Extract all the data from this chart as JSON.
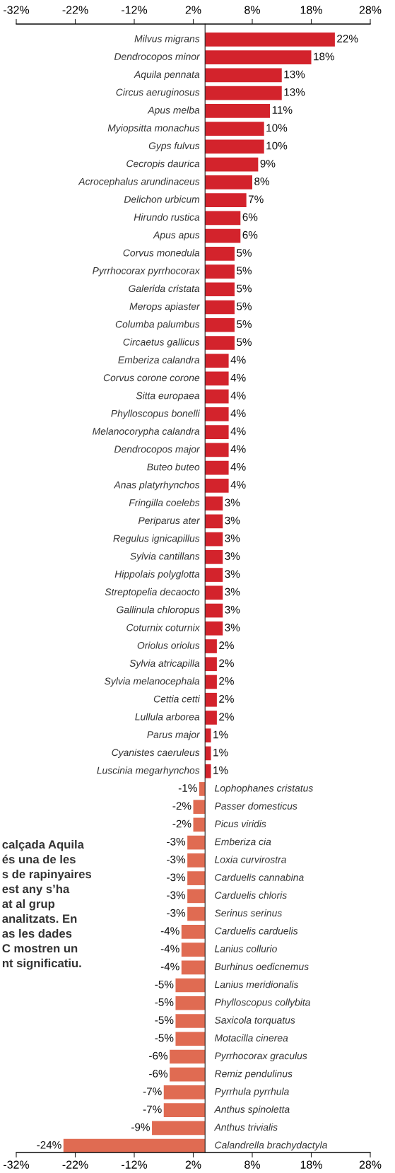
{
  "chart_data": {
    "type": "bar",
    "orientation": "horizontal",
    "categories": [
      "Milvus migrans",
      "Dendrocopos minor",
      "Aquila pennata",
      "Circus aeruginosus",
      "Apus melba",
      "Myiopsitta monachus",
      "Gyps fulvus",
      "Cecropis daurica",
      "Acrocephalus arundinaceus",
      "Delichon urbicum",
      "Hirundo rustica",
      "Apus apus",
      "Corvus monedula",
      "Pyrrhocorax pyrrhocorax",
      "Galerida cristata",
      "Merops apiaster",
      "Columba palumbus",
      "Circaetus gallicus",
      "Emberiza calandra",
      "Corvus corone corone",
      "Sitta europaea",
      "Phylloscopus bonelli",
      "Melanocorypha calandra",
      "Dendrocopos major",
      "Buteo buteo",
      "Anas platyrhynchos",
      "Fringilla coelebs",
      "Periparus ater",
      "Regulus ignicapillus",
      "Sylvia cantillans",
      "Hippolais polyglotta",
      "Streptopelia decaocto",
      "Gallinula chloropus",
      "Coturnix coturnix",
      "Oriolus oriolus",
      "Sylvia atricapilla",
      "Sylvia melanocephala",
      "Cettia cetti",
      "Lullula arborea",
      "Parus major",
      "Cyanistes caeruleus",
      "Luscinia megarhynchos",
      "Lophophanes cristatus",
      "Passer domesticus",
      "Picus viridis",
      "Emberiza cia",
      "Loxia curvirostra",
      "Carduelis cannabina",
      "Carduelis chloris",
      "Serinus serinus",
      "Carduelis carduelis",
      "Lanius collurio",
      "Burhinus oedicnemus",
      "Lanius meridionalis",
      "Phylloscopus collybita",
      "Saxicola torquatus",
      "Motacilla cinerea",
      "Pyrrhocorax graculus",
      "Remiz pendulinus",
      "Pyrrhula pyrrhula",
      "Anthus spinoletta",
      "Anthus trivialis",
      "Calandrella brachydactyla"
    ],
    "values": [
      22,
      18,
      13,
      13,
      11,
      10,
      10,
      9,
      8,
      7,
      6,
      6,
      5,
      5,
      5,
      5,
      5,
      5,
      4,
      4,
      4,
      4,
      4,
      4,
      4,
      4,
      3,
      3,
      3,
      3,
      3,
      3,
      3,
      3,
      2,
      2,
      2,
      2,
      2,
      1,
      1,
      1,
      -1,
      -2,
      -2,
      -3,
      -3,
      -3,
      -3,
      -3,
      -4,
      -4,
      -4,
      -5,
      -5,
      -5,
      -5,
      -6,
      -6,
      -7,
      -7,
      -9,
      -24
    ],
    "value_labels": [
      "22%",
      "18%",
      "13%",
      "13%",
      "11%",
      "10%",
      "10%",
      "9%",
      "8%",
      "7%",
      "6%",
      "6%",
      "5%",
      "5%",
      "5%",
      "5%",
      "5%",
      "5%",
      "4%",
      "4%",
      "4%",
      "4%",
      "4%",
      "4%",
      "4%",
      "4%",
      "3%",
      "3%",
      "3%",
      "3%",
      "3%",
      "3%",
      "3%",
      "3%",
      "2%",
      "2%",
      "2%",
      "2%",
      "2%",
      "1%",
      "1%",
      "1%",
      "-1%",
      "-2%",
      "-2%",
      "-3%",
      "-3%",
      "-3%",
      "-3%",
      "-3%",
      "-4%",
      "-4%",
      "-4%",
      "-5%",
      "-5%",
      "-5%",
      "-5%",
      "-6%",
      "-6%",
      "-7%",
      "-7%",
      "-9%",
      "-24%"
    ],
    "colors": [
      "#d3232c",
      "#d3232c",
      "#d3232c",
      "#d3232c",
      "#d3232c",
      "#d3232c",
      "#d3232c",
      "#d3232c",
      "#d3232c",
      "#d3232c",
      "#d3232c",
      "#d3232c",
      "#d3232c",
      "#d3232c",
      "#d3232c",
      "#d3232c",
      "#d3232c",
      "#d3232c",
      "#d3232c",
      "#d3232c",
      "#d3232c",
      "#d3232c",
      "#d3232c",
      "#d3232c",
      "#d3232c",
      "#d3232c",
      "#d3232c",
      "#d3232c",
      "#d3232c",
      "#d3232c",
      "#d3232c",
      "#d3232c",
      "#d3232c",
      "#d3232c",
      "#d3232c",
      "#d3232c",
      "#d3232c",
      "#d3232c",
      "#d3232c",
      "#d3232c",
      "#d3232c",
      "#d3232c",
      "#e06b52",
      "#e06b52",
      "#e06b52",
      "#e06b52",
      "#e06b52",
      "#e06b52",
      "#e06b52",
      "#e06b52",
      "#e06b52",
      "#e06b52",
      "#e06b52",
      "#e06b52",
      "#e06b52",
      "#e06b52",
      "#e06b52",
      "#e06b52",
      "#e06b52",
      "#e06b52",
      "#e06b52",
      "#e06b52",
      "#e06b52"
    ],
    "xlim": [
      -32,
      28
    ],
    "xticks": [
      {
        "value": -32,
        "label": "-32%"
      },
      {
        "value": -22,
        "label": "-22%"
      },
      {
        "value": -12,
        "label": "-12%"
      },
      {
        "value": -2,
        "label": "2%"
      },
      {
        "value": 8,
        "label": "8%"
      },
      {
        "value": 18,
        "label": "18%"
      },
      {
        "value": 28,
        "label": "28%"
      }
    ],
    "x2lim": [
      -32,
      28
    ],
    "x2ticks": [
      {
        "value": -32,
        "label": "-32%"
      },
      {
        "value": -22,
        "label": "-22%"
      },
      {
        "value": -12,
        "label": "-12%"
      },
      {
        "value": -2,
        "label": "2%"
      },
      {
        "value": 8,
        "label": "8%"
      },
      {
        "value": 18,
        "label": "18%"
      },
      {
        "value": 28,
        "label": "28%"
      }
    ],
    "annotations": [
      "calçada Aquila\nés una de les\ns de rapinyaires\nest any s’ha\nat al grup\nanalitzats. En\nas les dades\nC mostren un\nnt significatiu."
    ],
    "grid": false,
    "legend": false
  }
}
